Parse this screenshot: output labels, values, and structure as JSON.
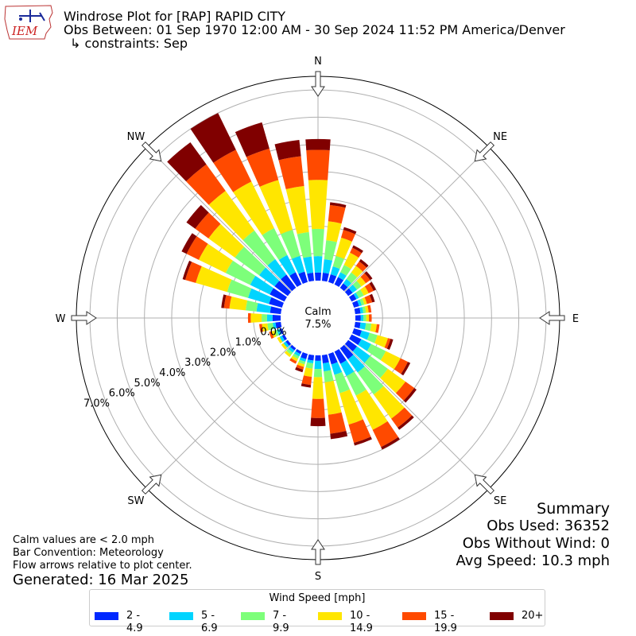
{
  "header": {
    "title_line1": "Windrose Plot for [RAP] RAPID CITY",
    "title_line2": "Obs Between: 01 Sep 1970 12:00 AM - 30 Sep 2024 11:52 PM America/Denver",
    "title_line3": "↳ constraints: Sep"
  },
  "logo": {
    "text": "IEM"
  },
  "notes": {
    "calm_note": "Calm values are < 2.0 mph",
    "bar_convention": "Bar Convention: Meteorology",
    "flow_arrows": "Flow arrows relative to plot center.",
    "generated": "Generated: 16 Mar 2025"
  },
  "summary": {
    "heading": "Summary",
    "obs_used": "Obs Used: 36352",
    "obs_without_wind": "Obs Without Wind: 0",
    "avg_speed": "Avg Speed: 10.3 mph"
  },
  "legend": {
    "title": "Wind Speed [mph]",
    "items": [
      {
        "label": "2 - 4.9",
        "color": "#0028ff"
      },
      {
        "label": "5 - 6.9",
        "color": "#00d4ff"
      },
      {
        "label": "7 - 9.9",
        "color": "#7dff7a"
      },
      {
        "label": "10 - 14.9",
        "color": "#ffe600"
      },
      {
        "label": "15 - 19.9",
        "color": "#ff4a00"
      },
      {
        "label": "20+",
        "color": "#800000"
      }
    ]
  },
  "chart_data": {
    "type": "windrose",
    "calm_label": "Calm",
    "calm_value": "7.5%",
    "calm_percent": 7.5,
    "directions": [
      "N",
      "NE",
      "E",
      "SE",
      "S",
      "SW",
      "W",
      "NW"
    ],
    "radial_ticks": [
      "0.0%",
      "1.0%",
      "2.0%",
      "3.0%",
      "4.0%",
      "5.0%",
      "6.0%",
      "7.0%"
    ],
    "radial_max": 7.5,
    "speed_bins": [
      "2 - 4.9",
      "5 - 6.9",
      "7 - 9.9",
      "10 - 14.9",
      "15 - 19.9",
      "20+"
    ],
    "sector_directions_deg": [
      0,
      10,
      20,
      30,
      40,
      50,
      60,
      70,
      80,
      90,
      100,
      110,
      120,
      130,
      140,
      150,
      160,
      170,
      180,
      190,
      200,
      210,
      220,
      230,
      240,
      250,
      260,
      270,
      280,
      290,
      300,
      310,
      320,
      330,
      340,
      350
    ],
    "sector_cumulative_percent": [
      [
        0.3,
        0.9,
        1.9,
        3.7,
        4.8,
        5.2
      ],
      [
        0.3,
        0.8,
        1.5,
        2.2,
        2.8,
        2.9
      ],
      [
        0.3,
        0.6,
        1.0,
        1.7,
        2.0,
        2.1
      ],
      [
        0.3,
        0.5,
        0.8,
        1.3,
        1.5,
        1.6
      ],
      [
        0.2,
        0.4,
        0.7,
        1.0,
        1.2,
        1.3
      ],
      [
        0.2,
        0.4,
        0.6,
        0.8,
        1.0,
        1.1
      ],
      [
        0.2,
        0.3,
        0.5,
        0.7,
        0.9,
        1.0
      ],
      [
        0.2,
        0.3,
        0.4,
        0.5,
        0.7,
        0.8
      ],
      [
        0.2,
        0.3,
        0.4,
        0.5,
        0.6,
        0.6
      ],
      [
        0.2,
        0.3,
        0.4,
        0.5,
        0.6,
        0.6
      ],
      [
        0.2,
        0.4,
        0.6,
        0.8,
        0.9,
        0.9
      ],
      [
        0.3,
        0.6,
        0.9,
        1.3,
        1.4,
        1.5
      ],
      [
        0.4,
        0.8,
        1.4,
        2.0,
        2.3,
        2.4
      ],
      [
        0.4,
        1.0,
        1.8,
        2.6,
        3.0,
        3.1
      ],
      [
        0.5,
        1.1,
        2.1,
        3.2,
        3.6,
        3.7
      ],
      [
        0.5,
        1.0,
        1.8,
        3.2,
        3.9,
        4.0
      ],
      [
        0.4,
        0.8,
        1.5,
        2.7,
        3.4,
        3.5
      ],
      [
        0.3,
        0.6,
        1.0,
        2.2,
        2.9,
        3.1
      ],
      [
        0.2,
        0.5,
        0.8,
        1.6,
        2.3,
        2.6
      ],
      [
        0.2,
        0.3,
        0.5,
        0.8,
        1.1,
        1.2
      ],
      [
        0.2,
        0.3,
        0.4,
        0.5,
        0.6,
        0.7
      ],
      [
        0.1,
        0.2,
        0.3,
        0.4,
        0.5,
        0.5
      ],
      [
        0.1,
        0.2,
        0.3,
        0.4,
        0.4,
        0.4
      ],
      [
        0.1,
        0.2,
        0.2,
        0.3,
        0.3,
        0.3
      ],
      [
        0.1,
        0.2,
        0.2,
        0.3,
        0.3,
        0.3
      ],
      [
        0.1,
        0.2,
        0.3,
        0.4,
        0.5,
        0.5
      ],
      [
        0.2,
        0.3,
        0.5,
        0.7,
        0.8,
        0.8
      ],
      [
        0.3,
        0.5,
        0.7,
        1.1,
        1.2,
        1.2
      ],
      [
        0.4,
        0.9,
        1.3,
        1.9,
        2.1,
        2.2
      ],
      [
        0.5,
        1.3,
        2.1,
        3.3,
        3.7,
        3.8
      ],
      [
        0.6,
        1.4,
        2.4,
        3.5,
        4.0,
        4.2
      ],
      [
        0.6,
        1.3,
        2.4,
        3.6,
        4.2,
        4.6
      ],
      [
        0.6,
        1.3,
        2.6,
        4.4,
        5.6,
        6.6
      ],
      [
        0.5,
        1.2,
        2.3,
        4.2,
        5.5,
        7.0
      ],
      [
        0.4,
        1.0,
        2.0,
        3.9,
        5.1,
        6.1
      ],
      [
        0.3,
        0.9,
        1.8,
        3.5,
        4.6,
        5.2
      ]
    ]
  }
}
